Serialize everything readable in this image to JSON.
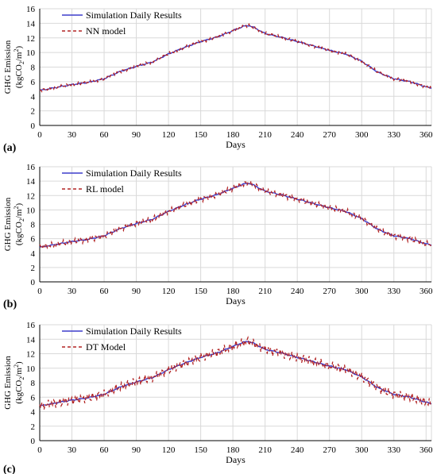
{
  "chart_data": [
    {
      "type": "line",
      "panel_label": "(a)",
      "xlabel": "Days",
      "ylabel_line1": "GHG Emission",
      "ylabel_line2_prefix": "(kgCO",
      "ylabel_line2_sub": "2",
      "ylabel_line2_mid": "/m",
      "ylabel_line2_sup": "2",
      "ylabel_line2_suffix": ")",
      "xlim": [
        0,
        365
      ],
      "ylim": [
        0,
        16
      ],
      "xticks": [
        "0",
        "30",
        "60",
        "90",
        "120",
        "150",
        "180",
        "210",
        "240",
        "270",
        "300",
        "330",
        "360"
      ],
      "yticks": [
        "0",
        "2",
        "4",
        "6",
        "8",
        "10",
        "12",
        "14",
        "16"
      ],
      "grid": true,
      "legend_position": "top-left",
      "series": [
        {
          "name": "Simulation Daily Results",
          "style": "solid",
          "color": "#3d3dcc"
        },
        {
          "name": "NN model",
          "style": "dashed",
          "color": "#b22222"
        }
      ],
      "simulation_key_points": {
        "x": [
          0,
          15,
          30,
          45,
          60,
          75,
          90,
          105,
          120,
          135,
          150,
          165,
          180,
          190,
          195,
          200,
          210,
          225,
          240,
          255,
          270,
          285,
          300,
          315,
          330,
          345,
          360,
          365
        ],
        "y": [
          4.8,
          5.2,
          5.6,
          5.9,
          6.4,
          7.4,
          8.1,
          8.7,
          9.8,
          10.7,
          11.5,
          12.1,
          13.0,
          13.6,
          13.7,
          13.4,
          12.6,
          12.1,
          11.5,
          10.9,
          10.3,
          9.8,
          8.8,
          7.3,
          6.4,
          6.0,
          5.3,
          5.1
        ]
      },
      "model_noise_amplitude": 0.25
    },
    {
      "type": "line",
      "panel_label": "(b)",
      "xlabel": "Days",
      "ylabel_line1": "GHG Emission",
      "ylabel_line2_prefix": "(kgCO",
      "ylabel_line2_sub": "2",
      "ylabel_line2_mid": "/m",
      "ylabel_line2_sup": "2",
      "ylabel_line2_suffix": ")",
      "xlim": [
        0,
        365
      ],
      "ylim": [
        0,
        16
      ],
      "xticks": [
        "0",
        "30",
        "60",
        "90",
        "120",
        "150",
        "180",
        "210",
        "240",
        "270",
        "300",
        "330",
        "360"
      ],
      "yticks": [
        "0",
        "2",
        "4",
        "6",
        "8",
        "10",
        "12",
        "14",
        "16"
      ],
      "grid": true,
      "legend_position": "top-left",
      "series": [
        {
          "name": "Simulation Daily Results",
          "style": "solid",
          "color": "#3d3dcc"
        },
        {
          "name": "RL model",
          "style": "dashed",
          "color": "#b22222"
        }
      ],
      "simulation_key_points": {
        "x": [
          0,
          15,
          30,
          45,
          60,
          75,
          90,
          105,
          120,
          135,
          150,
          165,
          180,
          190,
          195,
          200,
          210,
          225,
          240,
          255,
          270,
          285,
          300,
          315,
          330,
          345,
          360,
          365
        ],
        "y": [
          4.8,
          5.2,
          5.6,
          5.9,
          6.4,
          7.4,
          8.1,
          8.7,
          9.8,
          10.7,
          11.5,
          12.1,
          13.0,
          13.6,
          13.7,
          13.4,
          12.6,
          12.1,
          11.5,
          10.9,
          10.3,
          9.8,
          8.8,
          7.3,
          6.4,
          6.0,
          5.3,
          5.1
        ]
      },
      "model_noise_amplitude": 0.45
    },
    {
      "type": "line",
      "panel_label": "(c)",
      "xlabel": "Days",
      "ylabel_line1": "GHG Emission",
      "ylabel_line2_prefix": "(kgCO",
      "ylabel_line2_sub": "2",
      "ylabel_line2_mid": "/m",
      "ylabel_line2_sup": "2",
      "ylabel_line2_suffix": ")",
      "xlim": [
        0,
        365
      ],
      "ylim": [
        0,
        16
      ],
      "xticks": [
        "0",
        "30",
        "60",
        "90",
        "120",
        "150",
        "180",
        "210",
        "240",
        "270",
        "300",
        "330",
        "360"
      ],
      "yticks": [
        "0",
        "2",
        "4",
        "6",
        "8",
        "10",
        "12",
        "14",
        "16"
      ],
      "grid": true,
      "legend_position": "top-left",
      "series": [
        {
          "name": "Simulation Daily Results",
          "style": "solid",
          "color": "#3d3dcc"
        },
        {
          "name": "DT Model",
          "style": "dashed",
          "color": "#b22222"
        }
      ],
      "simulation_key_points": {
        "x": [
          0,
          15,
          30,
          45,
          60,
          75,
          90,
          105,
          120,
          135,
          150,
          165,
          180,
          190,
          195,
          200,
          210,
          225,
          240,
          255,
          270,
          285,
          300,
          315,
          330,
          345,
          360,
          365
        ],
        "y": [
          4.8,
          5.2,
          5.6,
          5.9,
          6.4,
          7.4,
          8.1,
          8.7,
          9.8,
          10.7,
          11.5,
          12.1,
          13.0,
          13.6,
          13.7,
          13.4,
          12.6,
          12.1,
          11.5,
          10.9,
          10.3,
          9.8,
          8.8,
          7.3,
          6.4,
          6.0,
          5.3,
          5.1
        ]
      },
      "model_noise_amplitude": 0.7
    }
  ]
}
